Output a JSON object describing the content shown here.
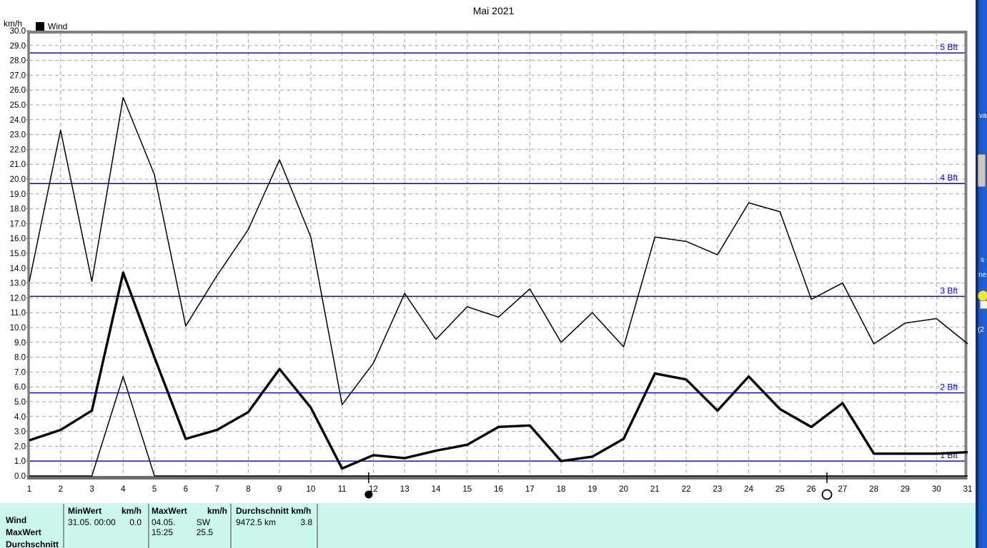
{
  "chart_data": {
    "type": "line",
    "title": "Mai 2021",
    "y_unit": "km/h",
    "legend": [
      {
        "label": "Wind",
        "color": "#000000"
      }
    ],
    "xlabel": "",
    "ylabel": "km/h",
    "ylim": [
      0,
      30
    ],
    "y_tick_step": 1,
    "grid": true,
    "categories": [
      1,
      2,
      3,
      4,
      5,
      6,
      7,
      8,
      9,
      10,
      11,
      12,
      13,
      14,
      15,
      16,
      17,
      18,
      19,
      20,
      21,
      22,
      23,
      24,
      25,
      26,
      27,
      28,
      29,
      30,
      31
    ],
    "series": [
      {
        "name": "MinWert",
        "style": "thin",
        "values": [
          0,
          0,
          0,
          6.7,
          0,
          0,
          0,
          0,
          0,
          0,
          0,
          0,
          0,
          0,
          0,
          0,
          0,
          0,
          0,
          0,
          0,
          0,
          0,
          0,
          0,
          0,
          0,
          0,
          0,
          0,
          0
        ]
      },
      {
        "name": "MaxWert",
        "style": "thin",
        "values": [
          13.1,
          23.3,
          13.1,
          25.5,
          20.3,
          10.1,
          13.5,
          16.6,
          21.3,
          16.1,
          4.8,
          7.6,
          12.3,
          9.2,
          11.4,
          10.7,
          12.6,
          9.0,
          11.0,
          8.7,
          16.1,
          15.8,
          14.9,
          18.4,
          17.8,
          11.9,
          13.0,
          8.9,
          10.3,
          10.6,
          8.9
        ]
      },
      {
        "name": "Wind",
        "style": "thick",
        "values": [
          2.4,
          3.1,
          4.4,
          13.7,
          8.0,
          2.5,
          3.1,
          4.3,
          7.2,
          4.6,
          0.5,
          1.4,
          1.2,
          1.7,
          2.1,
          3.3,
          3.4,
          1.0,
          1.3,
          2.5,
          6.9,
          6.5,
          4.4,
          6.7,
          4.5,
          3.3,
          4.9,
          1.5,
          1.5,
          1.5,
          1.6
        ]
      }
    ],
    "beaufort_lines": [
      {
        "label": "1 Bft",
        "value": 1.0
      },
      {
        "label": "2 Bft",
        "value": 5.6
      },
      {
        "label": "3 Bft",
        "value": 12.1
      },
      {
        "label": "4 Bft",
        "value": 19.7
      },
      {
        "label": "5 Bft",
        "value": 28.5
      }
    ],
    "moon_markers": [
      {
        "symbol": "new-moon",
        "day": 11.85
      },
      {
        "symbol": "full-moon",
        "day": 26.5
      }
    ],
    "colors": {
      "series": "#000000",
      "beaufort": "#0000cc",
      "grid": "#a4a4a4",
      "frame": "#808080"
    },
    "legend_position": "top-left"
  },
  "summary_table": {
    "row_labels": [
      "Wind",
      "MaxWert",
      "Durchschnitt"
    ],
    "columns": [
      {
        "header_left": "MinWert",
        "header_right": "km/h",
        "value_left": "31.05.  00:00",
        "value_right": "0.0"
      },
      {
        "header_left": "MaxWert",
        "header_right": "km/h",
        "value_left": "04.05.  15:25",
        "value_right": "SW 25.5"
      },
      {
        "header_left": "Durchschnitt km/h",
        "header_right": "",
        "value_left": "9472.5 km",
        "value_right": "3.8"
      }
    ]
  },
  "background_window": {
    "fragments": [
      "va",
      "s",
      "ne",
      "(2"
    ]
  }
}
